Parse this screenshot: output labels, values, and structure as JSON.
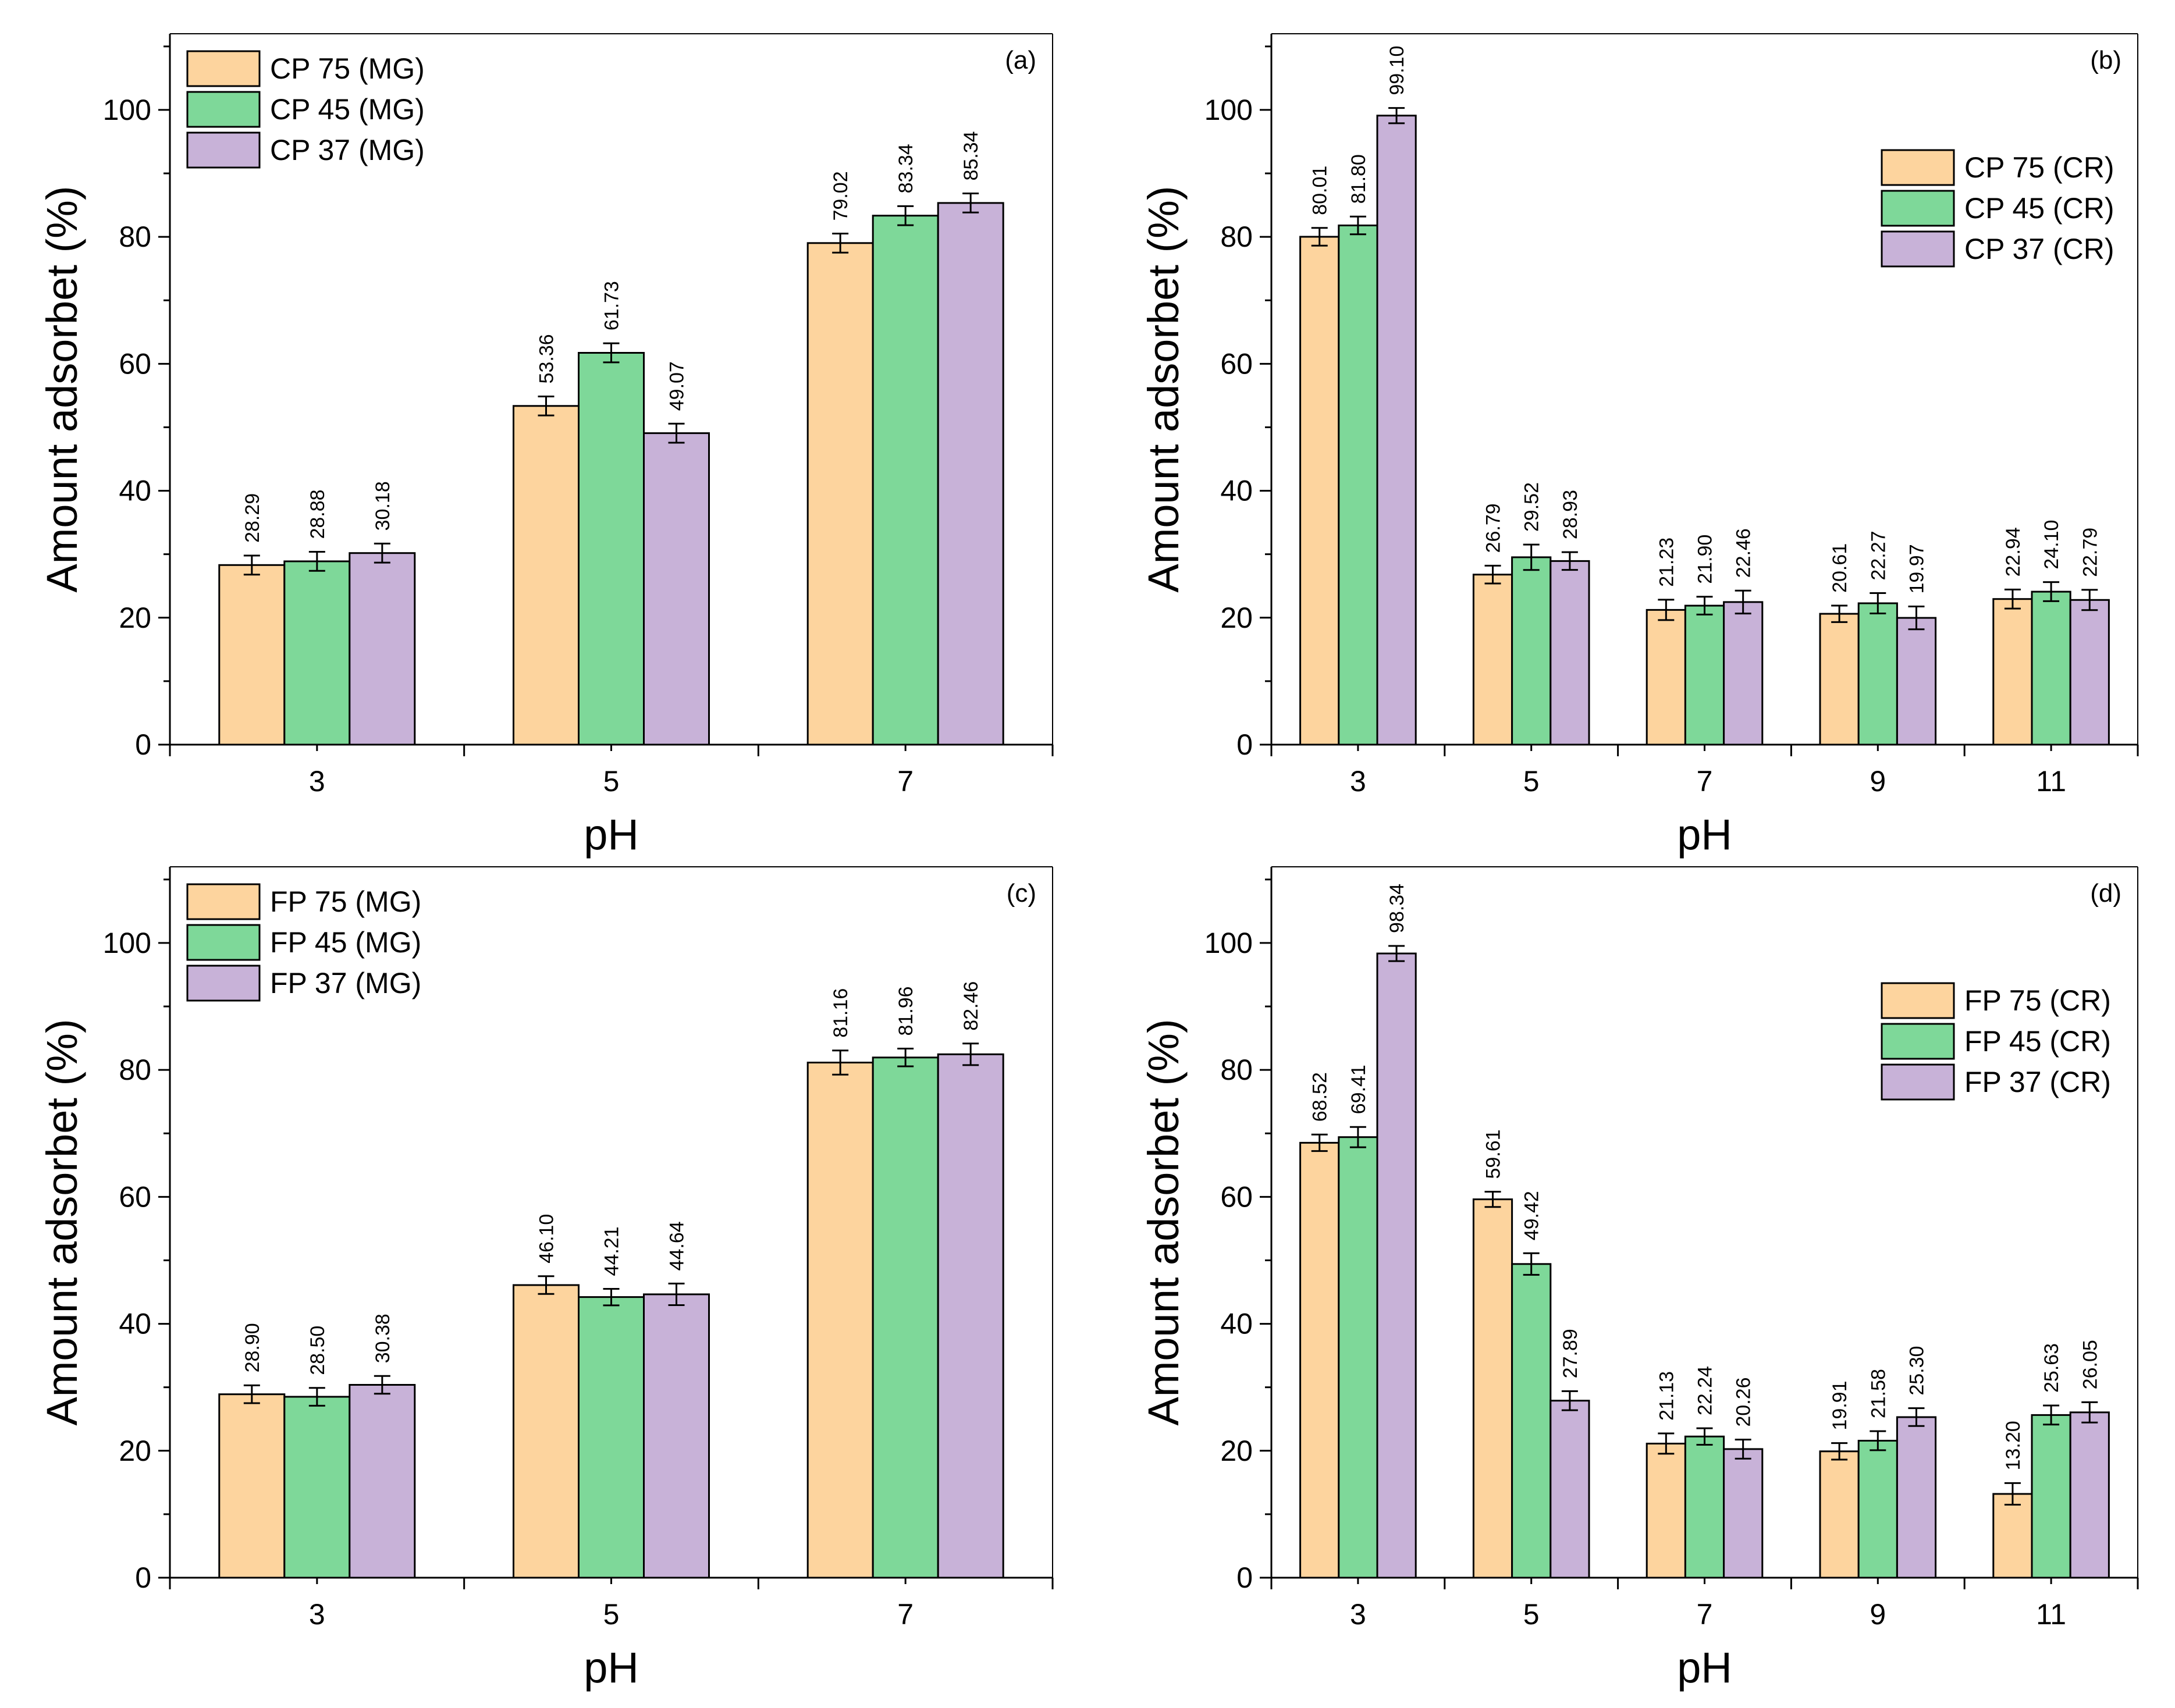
{
  "chart_data": [
    {
      "type": "bar",
      "tag": "(a)",
      "categories": [
        "3",
        "5",
        "7"
      ],
      "series": [
        {
          "name": "CP 75 (MG)",
          "values": [
            28.29,
            53.36,
            79.02
          ],
          "labels": [
            "28.29",
            "53.36",
            "79.02"
          ],
          "errors": [
            1.5,
            1.5,
            1.5
          ]
        },
        {
          "name": "CP 45 (MG)",
          "values": [
            28.88,
            61.73,
            83.34
          ],
          "labels": [
            "28.88",
            "61.73",
            "83.34"
          ],
          "errors": [
            1.5,
            1.5,
            1.5
          ]
        },
        {
          "name": "CP 37 (MG)",
          "values": [
            30.18,
            49.07,
            85.34
          ],
          "labels": [
            "30.18",
            "49.07",
            "85.34"
          ],
          "errors": [
            1.5,
            1.5,
            1.5
          ]
        }
      ],
      "xlabel": "pH",
      "ylabel": "Amount adsorbet (%)",
      "ylim": [
        0,
        112
      ],
      "yticks": [
        0,
        20,
        40,
        60,
        80,
        100
      ],
      "legend_position": "top-left"
    },
    {
      "type": "bar",
      "tag": "(b)",
      "categories": [
        "3",
        "5",
        "7",
        "9",
        "11"
      ],
      "series": [
        {
          "name": "CP 75 (CR)",
          "values": [
            80.01,
            26.79,
            21.23,
            20.61,
            22.94
          ],
          "labels": [
            "80.01",
            "26.79",
            "21.23",
            "20.61",
            "22.94"
          ],
          "errors": [
            1.4,
            1.4,
            1.6,
            1.3,
            1.5
          ]
        },
        {
          "name": "CP 45 (CR)",
          "values": [
            81.8,
            29.52,
            21.9,
            22.27,
            24.1
          ],
          "labels": [
            "81.80",
            "29.52",
            "21.90",
            "22.27",
            "24.10"
          ],
          "errors": [
            1.4,
            2.0,
            1.4,
            1.6,
            1.5
          ]
        },
        {
          "name": "CP 37 (CR)",
          "values": [
            99.1,
            28.93,
            22.46,
            19.97,
            22.79
          ],
          "labels": [
            "99.10",
            "28.93",
            "22.46",
            "19.97",
            "22.79"
          ],
          "errors": [
            1.2,
            1.4,
            1.8,
            1.8,
            1.6
          ]
        }
      ],
      "xlabel": "pH",
      "ylabel": "Amount adsorbet (%)",
      "ylim": [
        0,
        112
      ],
      "yticks": [
        0,
        20,
        40,
        60,
        80,
        100
      ],
      "legend_position": "top-right"
    },
    {
      "type": "bar",
      "tag": "(c)",
      "categories": [
        "3",
        "5",
        "7"
      ],
      "series": [
        {
          "name": "FP 75 (MG)",
          "values": [
            28.9,
            46.1,
            81.16
          ],
          "labels": [
            "28.90",
            "46.10",
            "81.16"
          ],
          "errors": [
            1.4,
            1.4,
            1.9
          ]
        },
        {
          "name": "FP 45 (MG)",
          "values": [
            28.5,
            44.21,
            81.96
          ],
          "labels": [
            "28.50",
            "44.21",
            "81.96"
          ],
          "errors": [
            1.4,
            1.3,
            1.4
          ]
        },
        {
          "name": "FP 37 (MG)",
          "values": [
            30.38,
            44.64,
            82.46
          ],
          "labels": [
            "30.38",
            "44.64",
            "82.46"
          ],
          "errors": [
            1.4,
            1.7,
            1.7
          ]
        }
      ],
      "xlabel": "pH",
      "ylabel": "Amount adsorbet (%)",
      "ylim": [
        0,
        112
      ],
      "yticks": [
        0,
        20,
        40,
        60,
        80,
        100
      ],
      "legend_position": "top-left"
    },
    {
      "type": "bar",
      "tag": "(d)",
      "categories": [
        "3",
        "5",
        "7",
        "9",
        "11"
      ],
      "series": [
        {
          "name": "FP 75 (CR)",
          "values": [
            68.52,
            59.61,
            21.13,
            19.91,
            13.2
          ],
          "labels": [
            "68.52",
            "59.61",
            "21.13",
            "19.91",
            "13.20"
          ],
          "errors": [
            1.3,
            1.2,
            1.6,
            1.3,
            1.7
          ]
        },
        {
          "name": "FP 45 (CR)",
          "values": [
            69.41,
            49.42,
            22.24,
            21.58,
            25.63
          ],
          "labels": [
            "69.41",
            "49.42",
            "22.24",
            "21.58",
            "25.63"
          ],
          "errors": [
            1.6,
            1.7,
            1.3,
            1.5,
            1.5
          ]
        },
        {
          "name": "FP 37 (CR)",
          "values": [
            98.34,
            27.89,
            20.26,
            25.3,
            26.05
          ],
          "labels": [
            "98.34",
            "27.89",
            "20.26",
            "25.30",
            "26.05"
          ],
          "errors": [
            1.2,
            1.5,
            1.5,
            1.4,
            1.6
          ]
        }
      ],
      "xlabel": "pH",
      "ylabel": "Amount adsorbet (%)",
      "ylim": [
        0,
        112
      ],
      "yticks": [
        0,
        20,
        40,
        60,
        80,
        100
      ],
      "legend_position": "top-right"
    }
  ],
  "colors": {
    "series": [
      "#FDD49E",
      "#7ED899",
      "#C8B2D8"
    ],
    "edge": "#000000"
  }
}
